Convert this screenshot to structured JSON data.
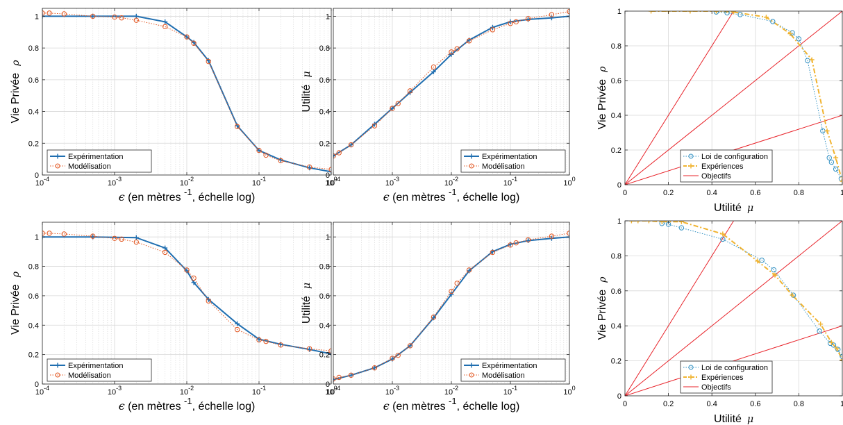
{
  "colors": {
    "experimentation": "#1f6eb0",
    "modelisation": "#e2551f",
    "loi": "#2f8fc2",
    "experiences": "#f0b330",
    "objectifs": "#e8232a",
    "grid": "#d8d8d8"
  },
  "chart_data": [
    {
      "type": "line",
      "xscale": "log",
      "xlim": [
        0.0001,
        1
      ],
      "ylim": [
        0,
        1.05
      ],
      "xticks": [
        "10-4",
        "10-3",
        "10-2",
        "10-1",
        "100"
      ],
      "yticks": [
        "0",
        "0.2",
        "0.4",
        "0.6",
        "0.8",
        "1"
      ],
      "xlabel": {
        "sym": "ϵ",
        "pre": "(en mètres",
        "sup": "-1",
        "post": ", échelle log)"
      },
      "ylabel": {
        "text": "Vie Privée",
        "sym": "ρ"
      },
      "legend": "bottom-left",
      "grid": true,
      "series": [
        {
          "name": "Expérimentation",
          "style": "solid-plus",
          "x": [
            0.0001,
            0.0005,
            0.002,
            0.005,
            0.01,
            0.0125,
            0.02,
            0.05,
            0.1,
            0.2,
            0.5,
            1
          ],
          "y": [
            1.0,
            1.0,
            1.0,
            0.965,
            0.87,
            0.835,
            0.72,
            0.31,
            0.155,
            0.095,
            0.045,
            0.02
          ]
        },
        {
          "name": "Modélisation",
          "style": "dotted-circle",
          "x": [
            0.0001,
            0.000125,
            0.0002,
            0.0005,
            0.001,
            0.00125,
            0.002,
            0.005,
            0.01,
            0.0125,
            0.02,
            0.05,
            0.1,
            0.125,
            0.2,
            0.5,
            1
          ],
          "y": [
            1.02,
            1.02,
            1.015,
            1.0,
            0.995,
            0.99,
            0.975,
            0.935,
            0.87,
            0.83,
            0.715,
            0.305,
            0.155,
            0.125,
            0.09,
            0.05,
            0.035
          ]
        }
      ]
    },
    {
      "type": "line",
      "xscale": "log",
      "xlim": [
        0.0001,
        1
      ],
      "ylim": [
        0,
        1.05
      ],
      "xticks": [
        "10-4",
        "10-3",
        "10-2",
        "10-1",
        "100"
      ],
      "yticks": [
        "0",
        "0.2",
        "0.4",
        "0.6",
        "0.8",
        "1"
      ],
      "xlabel": {
        "sym": "ϵ",
        "pre": "(en mètres",
        "sup": "-1",
        "post": ", échelle log)"
      },
      "ylabel": {
        "text": "Utilité",
        "sym": "μ"
      },
      "legend": "bottom-right",
      "grid": true,
      "series": [
        {
          "name": "Expérimentation",
          "style": "solid-plus",
          "x": [
            0.0001,
            0.0002,
            0.0005,
            0.001,
            0.002,
            0.005,
            0.01,
            0.02,
            0.05,
            0.1,
            0.2,
            0.5,
            1
          ],
          "y": [
            0.12,
            0.19,
            0.32,
            0.42,
            0.52,
            0.65,
            0.76,
            0.85,
            0.93,
            0.965,
            0.98,
            0.99,
            1.0
          ]
        },
        {
          "name": "Modélisation",
          "style": "dotted-circle",
          "x": [
            0.0001,
            0.000125,
            0.0002,
            0.0005,
            0.001,
            0.00125,
            0.002,
            0.005,
            0.01,
            0.0125,
            0.02,
            0.05,
            0.1,
            0.125,
            0.2,
            0.5,
            1
          ],
          "y": [
            0.12,
            0.14,
            0.19,
            0.31,
            0.42,
            0.45,
            0.53,
            0.68,
            0.775,
            0.795,
            0.845,
            0.915,
            0.955,
            0.965,
            0.985,
            1.01,
            1.03
          ]
        }
      ]
    },
    {
      "type": "line",
      "xscale": "linear",
      "xlim": [
        0,
        1
      ],
      "ylim": [
        0,
        1
      ],
      "xticks": [
        "0",
        "0.2",
        "0.4",
        "0.6",
        "0.8",
        "1"
      ],
      "yticks": [
        "0",
        "0.2",
        "0.4",
        "0.6",
        "0.8",
        "1"
      ],
      "xlabel": {
        "text": "Utilité",
        "sym": "μ"
      },
      "ylabel": {
        "text": "Vie Privée",
        "sym": "ρ"
      },
      "legend": "bottom-center",
      "grid": true,
      "lines": {
        "name": "Objectifs",
        "slopes": [
          2,
          1,
          0.4
        ]
      },
      "series": [
        {
          "name": "Loi de configuration",
          "style": "dotted-circle",
          "x": [
            0.42,
            0.47,
            0.53,
            0.68,
            0.77,
            0.8,
            0.84,
            0.91,
            0.94,
            0.95,
            0.97,
            0.995
          ],
          "y": [
            0.995,
            0.99,
            0.98,
            0.94,
            0.875,
            0.84,
            0.715,
            0.31,
            0.155,
            0.13,
            0.09,
            0.035
          ]
        },
        {
          "name": "Expériences",
          "style": "dashdot-plus",
          "x": [
            0.12,
            0.2,
            0.3,
            0.42,
            0.5,
            0.65,
            0.76,
            0.86,
            0.93,
            0.97,
            1.0
          ],
          "y": [
            1.0,
            1.0,
            1.0,
            1.0,
            0.995,
            0.965,
            0.87,
            0.72,
            0.31,
            0.155,
            0.02
          ]
        }
      ]
    },
    {
      "type": "line",
      "xscale": "log",
      "xlim": [
        0.0001,
        1
      ],
      "ylim": [
        0,
        1.1
      ],
      "xticks": [
        "10-4",
        "10-3",
        "10-2",
        "10-1",
        "100"
      ],
      "yticks": [
        "0",
        "0.2",
        "0.4",
        "0.6",
        "0.8",
        "1"
      ],
      "xlabel": {
        "sym": "ϵ",
        "pre": "(en mètres",
        "sup": "-1",
        "post": ", échelle log)"
      },
      "ylabel": {
        "text": "Vie Privée",
        "sym": "ρ"
      },
      "legend": "bottom-left",
      "grid": true,
      "series": [
        {
          "name": "Expérimentation",
          "style": "solid-plus",
          "x": [
            0.0001,
            0.0005,
            0.002,
            0.005,
            0.01,
            0.0125,
            0.02,
            0.05,
            0.1,
            0.2,
            0.5,
            1
          ],
          "y": [
            1.0,
            1.0,
            0.995,
            0.925,
            0.77,
            0.69,
            0.575,
            0.41,
            0.305,
            0.27,
            0.235,
            0.205
          ]
        },
        {
          "name": "Modélisation",
          "style": "dotted-circle",
          "x": [
            0.0001,
            0.000125,
            0.0002,
            0.0005,
            0.001,
            0.00125,
            0.002,
            0.005,
            0.01,
            0.0125,
            0.02,
            0.05,
            0.1,
            0.125,
            0.2,
            0.5,
            1
          ],
          "y": [
            1.025,
            1.025,
            1.02,
            1.005,
            0.99,
            0.985,
            0.965,
            0.895,
            0.775,
            0.72,
            0.565,
            0.37,
            0.3,
            0.29,
            0.265,
            0.24,
            0.225
          ]
        }
      ]
    },
    {
      "type": "line",
      "xscale": "log",
      "xlim": [
        0.0001,
        1
      ],
      "ylim": [
        0,
        1.1
      ],
      "xticks": [
        "10-4",
        "10-3",
        "10-2",
        "10-1",
        "100"
      ],
      "yticks": [
        "0",
        "0.2",
        "0.4",
        "0.6",
        "0.8",
        "1"
      ],
      "xlabel": {
        "sym": "ϵ",
        "pre": "(en mètres",
        "sup": "-1",
        "post": ", échelle log)"
      },
      "ylabel": {
        "text": "Utilité",
        "sym": "μ"
      },
      "legend": "bottom-right",
      "grid": true,
      "series": [
        {
          "name": "Expérimentation",
          "style": "solid-plus",
          "x": [
            0.0001,
            0.0002,
            0.0005,
            0.001,
            0.002,
            0.005,
            0.01,
            0.02,
            0.05,
            0.1,
            0.2,
            0.5,
            1
          ],
          "y": [
            0.03,
            0.06,
            0.11,
            0.17,
            0.26,
            0.45,
            0.61,
            0.77,
            0.9,
            0.95,
            0.975,
            0.99,
            1.0
          ]
        },
        {
          "name": "Modélisation",
          "style": "dotted-circle",
          "x": [
            0.0001,
            0.000125,
            0.0002,
            0.0005,
            0.001,
            0.00125,
            0.002,
            0.005,
            0.01,
            0.0125,
            0.02,
            0.05,
            0.1,
            0.125,
            0.2,
            0.5,
            1
          ],
          "y": [
            0.035,
            0.045,
            0.06,
            0.11,
            0.175,
            0.195,
            0.26,
            0.455,
            0.63,
            0.685,
            0.775,
            0.895,
            0.945,
            0.96,
            0.98,
            1.005,
            1.025
          ]
        }
      ]
    },
    {
      "type": "line",
      "xscale": "linear",
      "xlim": [
        0,
        1
      ],
      "ylim": [
        0,
        1
      ],
      "xticks": [
        "0",
        "0.2",
        "0.4",
        "0.6",
        "0.8",
        "1"
      ],
      "yticks": [
        "0",
        "0.2",
        "0.4",
        "0.6",
        "0.8",
        "1"
      ],
      "xlabel": {
        "text": "Utilité",
        "sym": "μ"
      },
      "ylabel": {
        "text": "Vie Privée",
        "sym": "ρ"
      },
      "legend": "bottom-center",
      "grid": true,
      "lines": {
        "name": "Objectifs",
        "slopes": [
          2,
          1,
          0.4
        ]
      },
      "series": [
        {
          "name": "Loi de configuration",
          "style": "dotted-circle",
          "x": [
            0.17,
            0.2,
            0.26,
            0.45,
            0.63,
            0.685,
            0.775,
            0.895,
            0.945,
            0.96,
            0.98,
            1.0
          ],
          "y": [
            0.985,
            0.98,
            0.96,
            0.895,
            0.775,
            0.72,
            0.575,
            0.37,
            0.3,
            0.29,
            0.265,
            0.225
          ]
        },
        {
          "name": "Expériences",
          "style": "dashdot-plus",
          "x": [
            0.03,
            0.06,
            0.11,
            0.17,
            0.26,
            0.45,
            0.61,
            0.69,
            0.77,
            0.9,
            0.95,
            0.975,
            1.0
          ],
          "y": [
            1.0,
            1.0,
            1.0,
            0.995,
            0.995,
            0.925,
            0.77,
            0.69,
            0.575,
            0.41,
            0.305,
            0.27,
            0.205
          ]
        }
      ]
    }
  ]
}
